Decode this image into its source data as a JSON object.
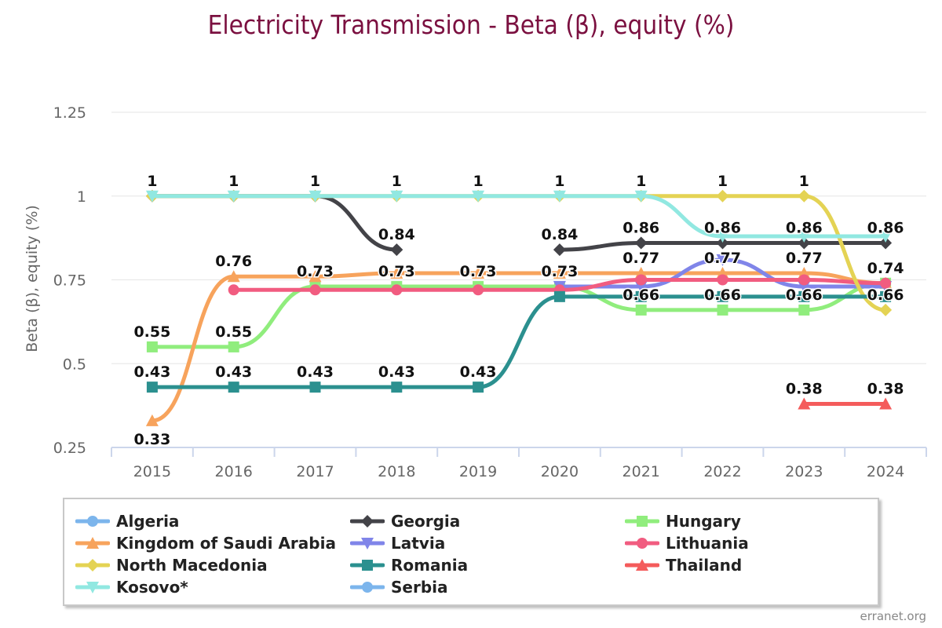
{
  "chart_data": {
    "type": "line",
    "title": "Electricity Transmission - Beta (β), equity (%)",
    "ylabel": "Beta (β), equity (%)",
    "xlabel": "",
    "categories": [
      "2015",
      "2016",
      "2017",
      "2018",
      "2019",
      "2020",
      "2021",
      "2022",
      "2023",
      "2024"
    ],
    "ylim": [
      0.25,
      1.25
    ],
    "yticks": [
      0.25,
      0.5,
      0.75,
      1,
      1.25
    ],
    "ytick_labels": [
      "0.25",
      "0.5",
      "0.75",
      "1",
      "1.25"
    ],
    "grid": true,
    "legend_position": "bottom",
    "series": [
      {
        "name": "Algeria",
        "color": "#7cb5ec",
        "marker": "circle",
        "values": [
          null,
          null,
          null,
          null,
          null,
          null,
          null,
          null,
          null,
          null
        ]
      },
      {
        "name": "Georgia",
        "color": "#434348",
        "marker": "diamond",
        "values": [
          1,
          1,
          1,
          0.84,
          null,
          0.84,
          0.86,
          0.86,
          0.86,
          0.86
        ]
      },
      {
        "name": "Hungary",
        "color": "#90ed7d",
        "marker": "square",
        "values": [
          0.55,
          0.55,
          0.73,
          0.73,
          0.73,
          0.73,
          0.66,
          0.66,
          0.66,
          0.74
        ]
      },
      {
        "name": "Kingdom of Saudi Arabia",
        "color": "#f7a35c",
        "marker": "triangle",
        "values": [
          0.33,
          0.76,
          0.76,
          0.77,
          0.77,
          0.77,
          0.77,
          0.77,
          0.77,
          0.74
        ]
      },
      {
        "name": "Latvia",
        "color": "#8085e9",
        "marker": "triangle-down",
        "values": [
          null,
          null,
          null,
          null,
          null,
          0.73,
          0.73,
          0.81,
          0.73,
          0.73
        ]
      },
      {
        "name": "Lithuania",
        "color": "#f15c80",
        "marker": "circle",
        "values": [
          null,
          0.72,
          0.72,
          0.72,
          0.72,
          0.72,
          0.75,
          0.75,
          0.75,
          0.74
        ]
      },
      {
        "name": "North Macedonia",
        "color": "#e4d354",
        "marker": "diamond",
        "values": [
          1,
          1,
          1,
          1,
          1,
          1,
          1,
          1,
          1,
          0.66
        ]
      },
      {
        "name": "Romania",
        "color": "#2b908f",
        "marker": "square",
        "values": [
          0.43,
          0.43,
          0.43,
          0.43,
          0.43,
          0.7,
          0.7,
          0.7,
          0.7,
          0.7
        ]
      },
      {
        "name": "Thailand",
        "color": "#f45b5b",
        "marker": "triangle",
        "values": [
          null,
          null,
          null,
          null,
          null,
          null,
          null,
          null,
          0.38,
          0.38
        ]
      },
      {
        "name": "Kosovo*",
        "color": "#91e8e1",
        "marker": "triangle-down",
        "values": [
          1,
          1,
          1,
          1,
          1,
          1,
          1,
          0.88,
          0.88,
          0.88
        ]
      },
      {
        "name": "Serbia",
        "color": "#7cb5ec",
        "marker": "circle",
        "values": [
          null,
          null,
          null,
          null,
          null,
          null,
          null,
          null,
          null,
          null
        ]
      }
    ],
    "data_labels": [
      {
        "category": "2015",
        "y": 1,
        "text": "1"
      },
      {
        "category": "2016",
        "y": 1,
        "text": "1"
      },
      {
        "category": "2017",
        "y": 1,
        "text": "1"
      },
      {
        "category": "2018",
        "y": 1,
        "text": "1"
      },
      {
        "category": "2019",
        "y": 1,
        "text": "1"
      },
      {
        "category": "2020",
        "y": 1,
        "text": "1"
      },
      {
        "category": "2021",
        "y": 1,
        "text": "1"
      },
      {
        "category": "2022",
        "y": 1,
        "text": "1"
      },
      {
        "category": "2023",
        "y": 1,
        "text": "1"
      },
      {
        "category": "2018",
        "y": 0.84,
        "text": "0.84"
      },
      {
        "category": "2020",
        "y": 0.84,
        "text": "0.84"
      },
      {
        "category": "2021",
        "y": 0.86,
        "text": "0.86"
      },
      {
        "category": "2022",
        "y": 0.86,
        "text": "0.86"
      },
      {
        "category": "2023",
        "y": 0.86,
        "text": "0.86"
      },
      {
        "category": "2024",
        "y": 0.86,
        "text": "0.86"
      },
      {
        "category": "2016",
        "y": 0.76,
        "text": "0.76"
      },
      {
        "category": "2017",
        "y": 0.73,
        "text": "0.73"
      },
      {
        "category": "2018",
        "y": 0.73,
        "text": "0.73"
      },
      {
        "category": "2019",
        "y": 0.73,
        "text": "0.73"
      },
      {
        "category": "2020",
        "y": 0.73,
        "text": "0.73"
      },
      {
        "category": "2021",
        "y": 0.77,
        "text": "0.77"
      },
      {
        "category": "2022",
        "y": 0.77,
        "text": "0.77"
      },
      {
        "category": "2023",
        "y": 0.77,
        "text": "0.77"
      },
      {
        "category": "2024",
        "y": 0.74,
        "text": "0.74"
      },
      {
        "category": "2021",
        "y": 0.66,
        "text": "0.66"
      },
      {
        "category": "2022",
        "y": 0.66,
        "text": "0.66"
      },
      {
        "category": "2023",
        "y": 0.66,
        "text": "0.66"
      },
      {
        "category": "2024",
        "y": 0.66,
        "text": "0.66"
      },
      {
        "category": "2015",
        "y": 0.55,
        "text": "0.55"
      },
      {
        "category": "2016",
        "y": 0.55,
        "text": "0.55"
      },
      {
        "category": "2015",
        "y": 0.43,
        "text": "0.43"
      },
      {
        "category": "2016",
        "y": 0.43,
        "text": "0.43"
      },
      {
        "category": "2017",
        "y": 0.43,
        "text": "0.43"
      },
      {
        "category": "2018",
        "y": 0.43,
        "text": "0.43"
      },
      {
        "category": "2019",
        "y": 0.43,
        "text": "0.43"
      },
      {
        "category": "2015",
        "y": 0.33,
        "text": "0.33",
        "below": true
      },
      {
        "category": "2023",
        "y": 0.38,
        "text": "0.38"
      },
      {
        "category": "2024",
        "y": 0.38,
        "text": "0.38"
      }
    ]
  },
  "watermark": "erranet.org"
}
